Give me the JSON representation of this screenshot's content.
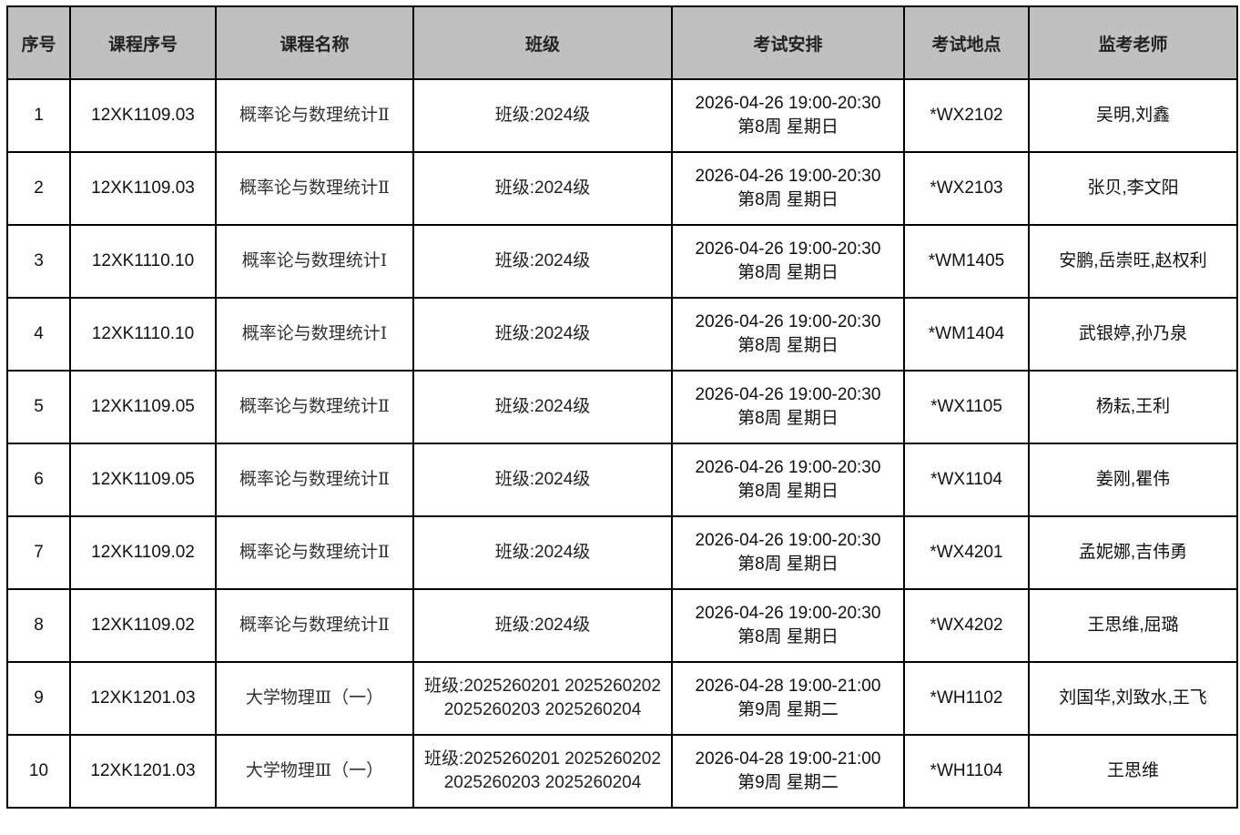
{
  "headers": [
    "序号",
    "课程序号",
    "课程名称",
    "班级",
    "考试安排",
    "考试地点",
    "监考老师"
  ],
  "rows": [
    {
      "no": "1",
      "code": "12XK1109.03",
      "name": "概率论与数理统计Ⅱ",
      "class": "班级:2024级",
      "date": "2026-04-26 19:00-20:30",
      "week": "第8周 星期日",
      "room": "*WX2102",
      "proctors": "吴明,刘鑫"
    },
    {
      "no": "2",
      "code": "12XK1109.03",
      "name": "概率论与数理统计Ⅱ",
      "class": "班级:2024级",
      "date": "2026-04-26 19:00-20:30",
      "week": "第8周 星期日",
      "room": "*WX2103",
      "proctors": "张贝,李文阳"
    },
    {
      "no": "3",
      "code": "12XK1110.10",
      "name": "概率论与数理统计Ⅰ",
      "class": "班级:2024级",
      "date": "2026-04-26 19:00-20:30",
      "week": "第8周 星期日",
      "room": "*WM1405",
      "proctors": "安鹏,岳崇旺,赵权利"
    },
    {
      "no": "4",
      "code": "12XK1110.10",
      "name": "概率论与数理统计Ⅰ",
      "class": "班级:2024级",
      "date": "2026-04-26 19:00-20:30",
      "week": "第8周 星期日",
      "room": "*WM1404",
      "proctors": "武银婷,孙乃泉"
    },
    {
      "no": "5",
      "code": "12XK1109.05",
      "name": "概率论与数理统计Ⅱ",
      "class": "班级:2024级",
      "date": "2026-04-26 19:00-20:30",
      "week": "第8周 星期日",
      "room": "*WX1105",
      "proctors": "杨耘,王利"
    },
    {
      "no": "6",
      "code": "12XK1109.05",
      "name": "概率论与数理统计Ⅱ",
      "class": "班级:2024级",
      "date": "2026-04-26 19:00-20:30",
      "week": "第8周 星期日",
      "room": "*WX1104",
      "proctors": "姜刚,瞿伟"
    },
    {
      "no": "7",
      "code": "12XK1109.02",
      "name": "概率论与数理统计Ⅱ",
      "class": "班级:2024级",
      "date": "2026-04-26 19:00-20:30",
      "week": "第8周 星期日",
      "room": "*WX4201",
      "proctors": "孟妮娜,吉伟勇"
    },
    {
      "no": "8",
      "code": "12XK1109.02",
      "name": "概率论与数理统计Ⅱ",
      "class": "班级:2024级",
      "date": "2026-04-26 19:00-20:30",
      "week": "第8周 星期日",
      "room": "*WX4202",
      "proctors": "王思维,屈璐"
    },
    {
      "no": "9",
      "code": "12XK1201.03",
      "name": "大学物理Ⅲ（一）",
      "class": "班级:2025260201 2025260202 2025260203 2025260204",
      "date": "2026-04-28 19:00-21:00",
      "week": "第9周 星期二",
      "room": "*WH1102",
      "proctors": "刘国华,刘致水,王飞"
    },
    {
      "no": "10",
      "code": "12XK1201.03",
      "name": "大学物理Ⅲ（一）",
      "class": "班级:2025260201 2025260202 2025260203 2025260204",
      "date": "2026-04-28 19:00-21:00",
      "week": "第9周 星期二",
      "room": "*WH1104",
      "proctors": "王思维"
    }
  ],
  "colors": {
    "header_bg": "#c0c0c0",
    "border": "#000000"
  }
}
